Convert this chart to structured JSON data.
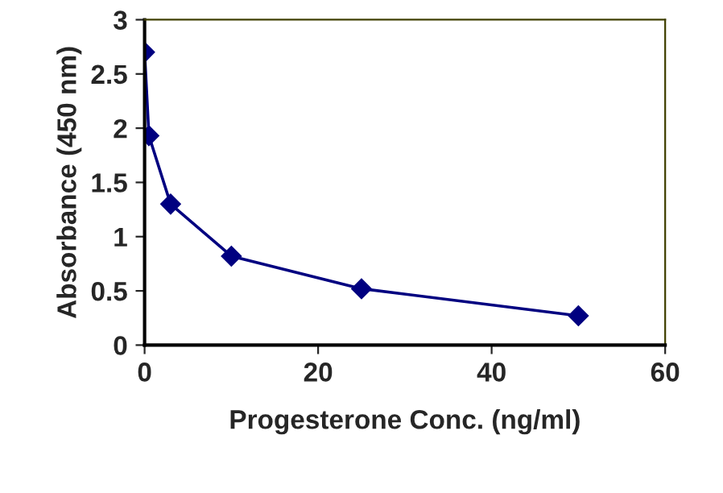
{
  "chart_data": {
    "type": "line",
    "xlabel": "Progesterone Conc. (ng/ml)",
    "ylabel": "Absorbance (450 nm)",
    "x": [
      0,
      0.5,
      3,
      10,
      25,
      50
    ],
    "series": [
      {
        "color": "#000080",
        "values": [
          2.7,
          1.93,
          1.3,
          0.82,
          0.52,
          0.27
        ]
      }
    ],
    "xlim": [
      0,
      60
    ],
    "xticks": [
      0,
      20,
      40,
      60
    ],
    "ylim": [
      0,
      3
    ],
    "yticks": [
      0,
      0.5,
      1,
      1.5,
      2,
      2.5,
      3
    ],
    "marker": "diamond",
    "line_style": "solid",
    "grid": false,
    "legend": false
  }
}
